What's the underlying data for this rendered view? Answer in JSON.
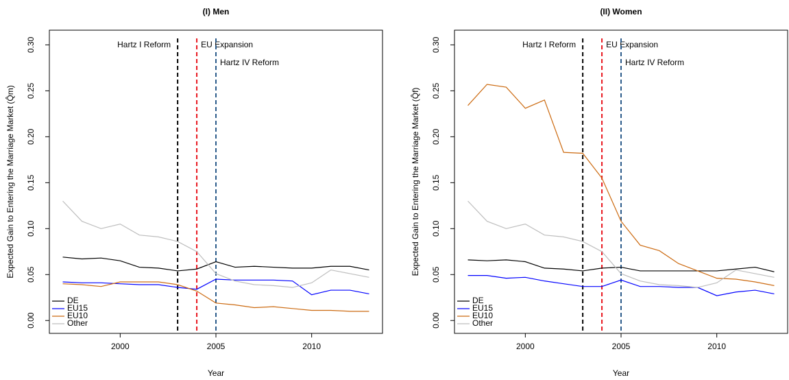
{
  "chart_data": [
    {
      "type": "line",
      "title": "(I) Men",
      "xlabel": "Year",
      "ylabel": "Expected Gain to Entering the Marriage Market (Q̂m)",
      "x": [
        1997,
        1998,
        1999,
        2000,
        2001,
        2002,
        2003,
        2004,
        2005,
        2006,
        2007,
        2008,
        2009,
        2010,
        2011,
        2012,
        2013
      ],
      "xlim": [
        1996.3,
        2013.7
      ],
      "xticks": [
        2000,
        2005,
        2010
      ],
      "ylim": [
        -0.014,
        0.316
      ],
      "yticks": [
        {
          "value": 0,
          "label": "0.00"
        },
        0.05,
        {
          "value": 0.1,
          "label": "0.10"
        },
        0.15,
        {
          "value": 0.2,
          "label": "0.20"
        },
        0.25,
        {
          "value": 0.3,
          "label": "0.30"
        }
      ],
      "legend": "bottom-left",
      "vlines": [
        {
          "x": 2003,
          "label": "Hartz I Reform",
          "color": "#000000"
        },
        {
          "x": 2004,
          "label": "EU Expansion",
          "color": "#e8141c"
        },
        {
          "x": 2005,
          "label": "Hartz IV Reform",
          "color": "#2a5a8a"
        }
      ],
      "series": [
        {
          "name": "DE",
          "color": "#000000",
          "values": [
            0.069,
            0.067,
            0.068,
            0.065,
            0.058,
            0.057,
            0.054,
            0.056,
            0.064,
            0.058,
            0.059,
            0.058,
            0.057,
            0.057,
            0.059,
            0.059,
            0.055
          ]
        },
        {
          "name": "EU15",
          "color": "#0000ff",
          "values": [
            0.042,
            0.041,
            0.041,
            0.04,
            0.039,
            0.039,
            0.036,
            0.034,
            0.045,
            0.044,
            0.044,
            0.044,
            0.043,
            0.028,
            0.033,
            0.033,
            0.029
          ]
        },
        {
          "name": "EU10",
          "color": "#cc6a10",
          "values": [
            0.04,
            0.039,
            0.037,
            0.042,
            0.042,
            0.042,
            0.039,
            0.032,
            0.019,
            0.017,
            0.014,
            0.015,
            0.013,
            0.011,
            0.011,
            0.01,
            0.01
          ]
        },
        {
          "name": "Other",
          "color": "#bdbdbd",
          "values": [
            0.13,
            0.108,
            0.1,
            0.105,
            0.093,
            0.091,
            0.086,
            0.075,
            0.051,
            0.043,
            0.039,
            0.038,
            0.036,
            0.041,
            0.055,
            0.051,
            0.047
          ]
        }
      ]
    },
    {
      "type": "line",
      "title": "(II) Women",
      "xlabel": "Year",
      "ylabel": "Expected Gain to Entering the Marriage Market (Q̂f)",
      "x": [
        1997,
        1998,
        1999,
        2000,
        2001,
        2002,
        2003,
        2004,
        2005,
        2006,
        2007,
        2008,
        2009,
        2010,
        2011,
        2012,
        2013
      ],
      "xlim": [
        1996.3,
        2013.7
      ],
      "xticks": [
        2000,
        2005,
        2010
      ],
      "ylim": [
        -0.014,
        0.316
      ],
      "yticks": [
        {
          "value": 0,
          "label": "0.00"
        },
        0.05,
        {
          "value": 0.1,
          "label": "0.10"
        },
        0.15,
        {
          "value": 0.2,
          "label": "0.20"
        },
        0.25,
        {
          "value": 0.3,
          "label": "0.30"
        }
      ],
      "legend": "bottom-left",
      "vlines": [
        {
          "x": 2003,
          "label": "Hartz I Reform",
          "color": "#000000"
        },
        {
          "x": 2004,
          "label": "EU Expansion",
          "color": "#e8141c"
        },
        {
          "x": 2005,
          "label": "Hartz IV Reform",
          "color": "#2a5a8a"
        }
      ],
      "series": [
        {
          "name": "DE",
          "color": "#000000",
          "values": [
            0.066,
            0.065,
            0.066,
            0.064,
            0.057,
            0.056,
            0.054,
            0.057,
            0.058,
            0.054,
            0.054,
            0.054,
            0.054,
            0.054,
            0.056,
            0.058,
            0.053
          ]
        },
        {
          "name": "EU15",
          "color": "#0000ff",
          "values": [
            0.049,
            0.049,
            0.046,
            0.047,
            0.043,
            0.04,
            0.037,
            0.037,
            0.044,
            0.037,
            0.037,
            0.036,
            0.036,
            0.027,
            0.031,
            0.033,
            0.029
          ]
        },
        {
          "name": "EU10",
          "color": "#cc6a10",
          "values": [
            0.234,
            0.257,
            0.254,
            0.231,
            0.24,
            0.183,
            0.182,
            0.155,
            0.108,
            0.082,
            0.076,
            0.062,
            0.054,
            0.046,
            0.045,
            0.042,
            0.038
          ]
        },
        {
          "name": "Other",
          "color": "#bdbdbd",
          "values": [
            0.13,
            0.108,
            0.1,
            0.105,
            0.093,
            0.091,
            0.086,
            0.075,
            0.051,
            0.043,
            0.039,
            0.038,
            0.036,
            0.041,
            0.055,
            0.051,
            0.047
          ]
        }
      ]
    }
  ]
}
